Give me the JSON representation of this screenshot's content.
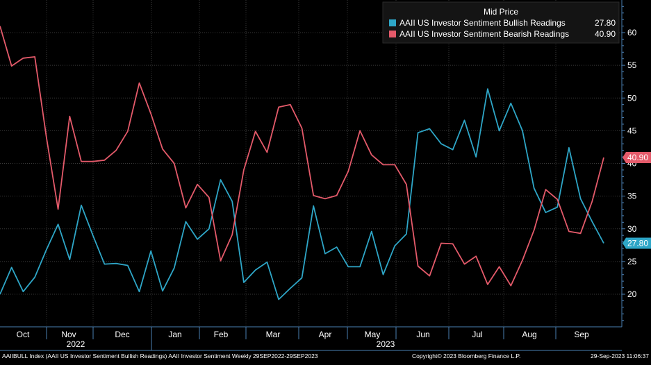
{
  "chart_data": {
    "type": "line",
    "legend": {
      "title": "Mid Price",
      "placement": "top-right"
    },
    "series": [
      {
        "name": "AAII US Investor Sentiment Bullish Readings",
        "last_value": "27.80",
        "color": "#2ea6c7",
        "values": [
          20.0,
          24.1,
          20.4,
          22.6,
          26.8,
          30.7,
          25.3,
          33.6,
          29.0,
          24.6,
          24.7,
          24.4,
          20.4,
          26.6,
          20.5,
          24.0,
          31.1,
          28.4,
          30.0,
          37.5,
          34.2,
          21.8,
          23.7,
          24.9,
          19.2,
          20.9,
          22.5,
          33.5,
          26.2,
          27.2,
          24.2,
          24.2,
          29.6,
          23.0,
          27.4,
          29.2,
          44.7,
          45.3,
          43.0,
          42.1,
          46.6,
          41.0,
          51.4,
          45.0,
          49.2,
          45.0,
          36.2,
          32.5,
          33.3,
          42.4,
          34.6,
          31.1,
          27.8
        ]
      },
      {
        "name": "AAII US Investor Sentiment Bearish Readings",
        "last_value": "40.90",
        "color": "#e45a6a",
        "values": [
          61.0,
          54.9,
          56.1,
          56.3,
          44.0,
          33.0,
          47.2,
          40.3,
          40.3,
          40.5,
          42.0,
          44.9,
          52.3,
          47.6,
          42.2,
          40.0,
          33.2,
          36.8,
          34.8,
          25.1,
          29.1,
          39.0,
          44.9,
          41.7,
          48.6,
          49.0,
          45.4,
          35.1,
          34.6,
          35.1,
          38.8,
          45.0,
          41.3,
          39.8,
          39.8,
          36.8,
          24.3,
          22.8,
          27.8,
          27.7,
          24.6,
          25.8,
          21.5,
          24.2,
          21.3,
          25.2,
          29.8,
          36.0,
          34.5,
          29.6,
          29.3,
          34.2,
          40.9
        ]
      }
    ],
    "y_ticks": [
      "60",
      "55",
      "50",
      "45",
      "40",
      "35",
      "30",
      "25",
      "20"
    ],
    "ylim": [
      15,
      65
    ],
    "x_month_labels": [
      "Oct",
      "Nov",
      "Dec",
      "Jan",
      "Feb",
      "Mar",
      "Apr",
      "May",
      "Jun",
      "Jul",
      "Aug",
      "Sep"
    ],
    "x_year_labels": [
      "2022",
      "2023"
    ],
    "grid": true,
    "gridline_color": "#3a3a3a",
    "axis_color": "#4a7fb2"
  },
  "footer": {
    "left": "AAIIBULL Index (AAII US Investor Sentiment Bullish Readings) AAII Investor Sentiment  Weekly 29SEP2022-29SEP2023",
    "center": "Copyright© 2023 Bloomberg Finance L.P.",
    "right": "29-Sep-2023 11:06:37"
  }
}
